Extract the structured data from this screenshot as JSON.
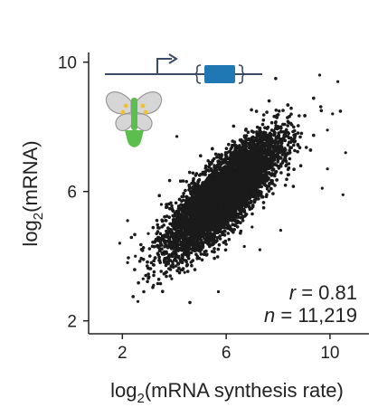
{
  "colors": {
    "points": "#1a1a1a",
    "axis": "#222222",
    "gene_line": "#3a4b63",
    "gene_box": "#1f77b4",
    "flower_petal": "#d4d4d4",
    "flower_stem": "#5cbf4d",
    "flower_accent": "#f2c12e"
  },
  "icons": {
    "gene_diagram": "gene-diagram-icon",
    "flower": "flower-icon"
  },
  "chart_data": {
    "type": "scatter",
    "xlabel": {
      "pre": "log",
      "sub": "2",
      "post": "(mRNA synthesis rate)"
    },
    "ylabel": {
      "pre": "log",
      "sub": "2",
      "post": "(mRNA)"
    },
    "xlim": [
      0.7,
      11.5
    ],
    "ylim": [
      1.6,
      10.3
    ],
    "xticks": [
      2,
      6,
      10
    ],
    "xtick_labels": [
      "2",
      "6",
      "10"
    ],
    "yticks": [
      2,
      6,
      10
    ],
    "ytick_labels": [
      "2",
      "6",
      "10"
    ],
    "grid": false,
    "n_points_shown": 11219,
    "trend_center": [
      5.9,
      5.9
    ],
    "trend_slope": 0.68,
    "outliers": [
      {
        "x": 9.6,
        "y": 9.6
      },
      {
        "x": 10.3,
        "y": 9.4
      },
      {
        "x": 10.1,
        "y": 8.4
      },
      {
        "x": 9.9,
        "y": 7.9
      },
      {
        "x": 10.6,
        "y": 7.2
      },
      {
        "x": 10.5,
        "y": 5.9
      },
      {
        "x": 9.7,
        "y": 6.1
      },
      {
        "x": 9.9,
        "y": 6.7
      },
      {
        "x": 7.0,
        "y": 4.9
      },
      {
        "x": 7.3,
        "y": 4.2
      },
      {
        "x": 8.1,
        "y": 4.8
      },
      {
        "x": 6.7,
        "y": 4.3
      },
      {
        "x": 5.7,
        "y": 2.9
      },
      {
        "x": 3.2,
        "y": 3.1
      },
      {
        "x": 2.8,
        "y": 3.3
      },
      {
        "x": 2.6,
        "y": 2.6
      },
      {
        "x": 2.2,
        "y": 3.8
      },
      {
        "x": 2.5,
        "y": 4.0
      },
      {
        "x": 1.9,
        "y": 4.4
      },
      {
        "x": 3.0,
        "y": 4.7
      },
      {
        "x": 3.6,
        "y": 4.6
      },
      {
        "x": 4.4,
        "y": 3.5
      },
      {
        "x": 3.9,
        "y": 3.3
      },
      {
        "x": 4.1,
        "y": 7.7
      },
      {
        "x": 3.5,
        "y": 5.6
      },
      {
        "x": 2.2,
        "y": 5.1
      }
    ],
    "annotations": {
      "r_label": "r",
      "r_value": " = 0.81",
      "n_label": "n",
      "n_value": " = 11,219"
    }
  }
}
